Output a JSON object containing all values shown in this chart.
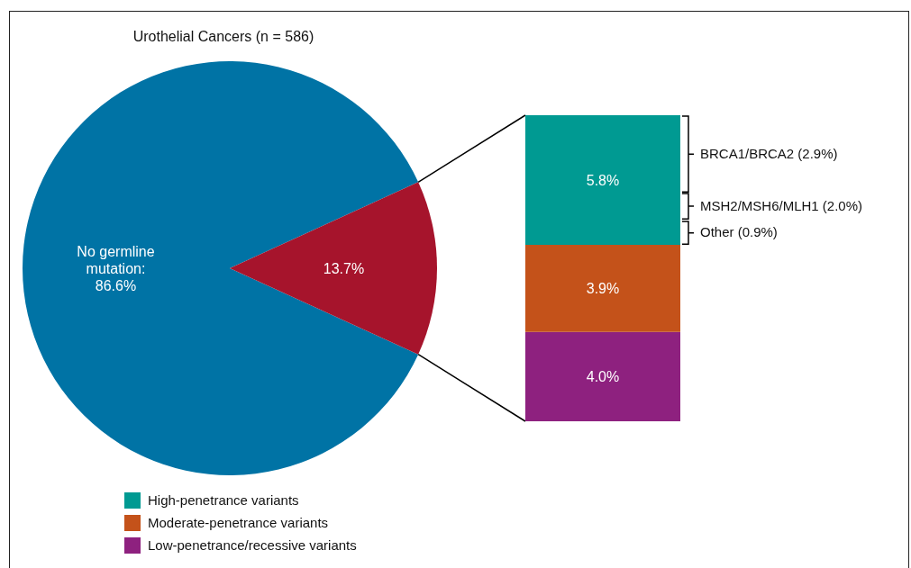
{
  "chart_data": [
    {
      "type": "pie",
      "title": "Urothelial Cancers (n = 586)",
      "categories": [
        null,
        null
      ],
      "values": [
        86.6,
        13.7
      ],
      "colors": [
        "#0073a5",
        "#a6142c"
      ],
      "value_labels": [
        "No germline mutation: 86.6%",
        "13.7%"
      ]
    },
    {
      "type": "bar",
      "stacked": true,
      "categories": [
        null
      ],
      "legend": "bottom left",
      "series": [
        {
          "name": "Low-penetrance/recessive variants",
          "color": "#8e217f",
          "values": [
            4.0
          ],
          "value_labels": [
            "4.0%"
          ]
        },
        {
          "name": "Moderate-penetrance variants",
          "color": "#c4521a",
          "values": [
            3.9
          ],
          "value_labels": [
            "3.9%"
          ]
        },
        {
          "name": "High-penetrance variants",
          "color": "#009a92",
          "values": [
            5.8
          ],
          "value_labels": [
            "5.8%"
          ]
        }
      ],
      "annotations": [
        "BRCA1/BRCA2 (2.9%)",
        "MSH2/MSH6/MLH1 (2.0%)",
        "Other (0.9%)"
      ]
    }
  ]
}
